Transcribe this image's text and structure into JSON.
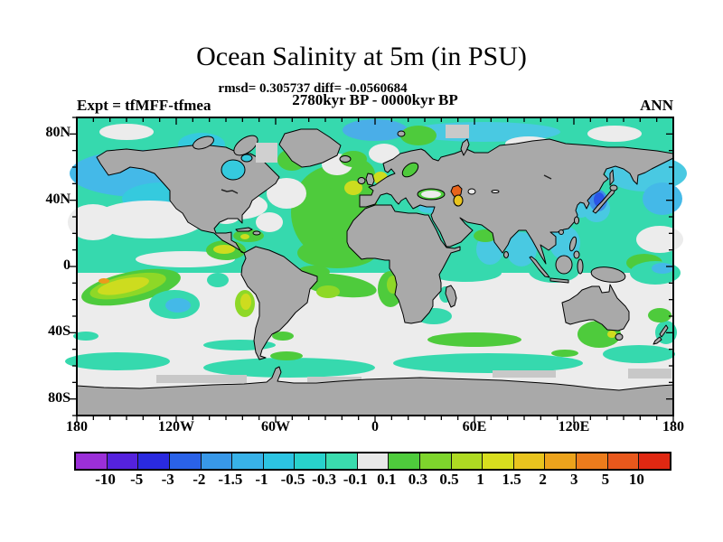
{
  "header": {
    "title": "Ocean Salinity at 5m (in PSU)",
    "stats": "rmsd= 0.305737 diff= -0.0560684",
    "period": "2780kyr BP - 0000kyr BP",
    "experiment": "Expt = tfMFF-tfmea",
    "season": "ANN"
  },
  "axes": {
    "lat_labels": [
      "80N",
      "40N",
      "0",
      "40S",
      "80S"
    ],
    "lon_labels": [
      "180",
      "120W",
      "60W",
      "0",
      "60E",
      "120E",
      "180"
    ]
  },
  "colorbar": {
    "levels": [
      "-10",
      "-5",
      "-3",
      "-2",
      "-1.5",
      "-1",
      "-0.5",
      "-0.3",
      "-0.1",
      "0.1",
      "0.3",
      "0.5",
      "1",
      "1.5",
      "2",
      "3",
      "5",
      "10"
    ],
    "colors": [
      "#9b2fd8",
      "#5522dd",
      "#2a2ae0",
      "#2a62e8",
      "#3898e8",
      "#38b2e8",
      "#2cc4e2",
      "#28d2cc",
      "#3adcae",
      "#e8e8e8",
      "#4ecb3c",
      "#7ed52c",
      "#aeda22",
      "#d8de1e",
      "#e9c41e",
      "#eca31c",
      "#ec7c1c",
      "#e8581c",
      "#e02812"
    ]
  },
  "chart_data": {
    "type": "heatmap",
    "title": "Ocean Salinity at 5m (in PSU)",
    "variable": "ocean salinity difference at 5 m depth",
    "units": "PSU",
    "statistics": {
      "rmsd": 0.305737,
      "diff": -0.0560684
    },
    "comparison": "2780kyr BP - 0000kyr BP",
    "experiment": "tfMFF-tfmea",
    "season": "ANN",
    "projection": "equirectangular world map",
    "lon_range": [
      -180,
      180
    ],
    "lat_range": [
      -90,
      90
    ],
    "lat_ticks": [
      "80N",
      "40N",
      "0",
      "40S",
      "80S"
    ],
    "lon_ticks": [
      "180",
      "120W",
      "60W",
      "0",
      "60E",
      "120E",
      "180"
    ],
    "contour_levels_psu": [
      -10,
      -5,
      -3,
      -2,
      -1.5,
      -1,
      -0.5,
      -0.3,
      -0.1,
      0.1,
      0.3,
      0.5,
      1,
      1.5,
      2,
      3,
      5,
      10
    ],
    "palette": [
      "#9b2fd8",
      "#5522dd",
      "#2a2ae0",
      "#2a62e8",
      "#3898e8",
      "#38b2e8",
      "#2cc4e2",
      "#28d2cc",
      "#3adcae",
      "#e8e8e8",
      "#4ecb3c",
      "#7ed52c",
      "#aeda22",
      "#d8de1e",
      "#e9c41e",
      "#eca31c",
      "#ec7c1c",
      "#e8581c",
      "#e02812"
    ],
    "land_color": "#a9a9a9",
    "ice_color": "#c8c8c8",
    "near_zero_ocean_color": "#ececec",
    "notable_features": [
      {
        "region": "North Pacific (broad)",
        "value_psu": "-0.3 to -0.1"
      },
      {
        "region": "Gulf of Alaska / NE Pacific",
        "value_psu": "-1 to -0.5"
      },
      {
        "region": "Arctic Ocean north of Greenland",
        "value_psu": "-1.5 to -1"
      },
      {
        "region": "Barents Sea",
        "value_psu": "+0.1 to +0.3"
      },
      {
        "region": "North Atlantic (broad)",
        "value_psu": "+0.1 to +0.3"
      },
      {
        "region": "Off Iberia / Biscay / North Sea",
        "value_psu": "+0.5 to +1"
      },
      {
        "region": "Hudson Bay",
        "value_psu": "-1 to -0.5"
      },
      {
        "region": "Sea of Japan",
        "value_psu": "-3 to -2"
      },
      {
        "region": "Caspian Sea north",
        "value_psu": "+3 to +5"
      },
      {
        "region": "Caspian Sea south",
        "value_psu": "+1.5 to +2"
      },
      {
        "region": "Subtropical SE Pacific (~15S 140W)",
        "value_psu": "+0.5 to +1 with spot +2 to +3"
      },
      {
        "region": "Chile coast",
        "value_psu": "+0.5 to +1"
      },
      {
        "region": "Benguela / Namibia coast",
        "value_psu": "+0.3 to +1"
      },
      {
        "region": "Tasman Sea / south of Australia",
        "value_psu": "+0.1 to +0.5"
      },
      {
        "region": "Bay of Bengal / Arabian Sea / South China Sea",
        "value_psu": "-1 to -0.5"
      },
      {
        "region": "Southern Ocean 45-60S bands",
        "value_psu": "-0.3 to -0.1"
      },
      {
        "region": "Subtropical southern oceans 25-45S",
        "value_psu": "-0.1 to +0.1"
      },
      {
        "region": "Mediterranean and Black Sea",
        "value_psu": "-0.1 to +0.1"
      }
    ]
  }
}
